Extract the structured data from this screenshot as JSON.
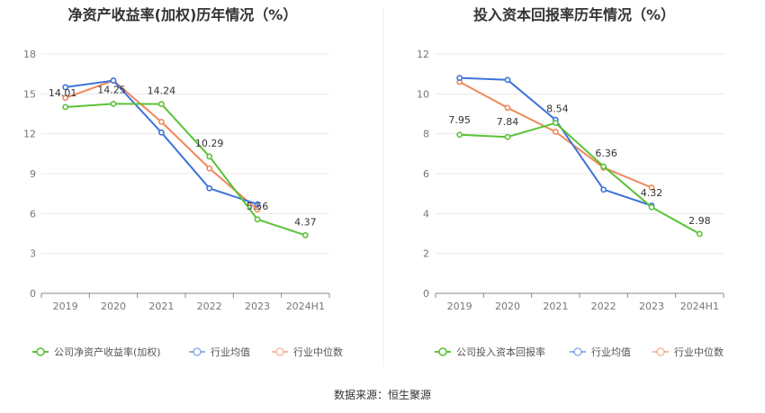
{
  "charts": [
    {
      "title": "净资产收益率(加权)历年情况（%）",
      "ylim": [
        0,
        18
      ],
      "yticks": [
        "0",
        "3",
        "6",
        "9",
        "12",
        "15",
        "18"
      ],
      "categories": [
        "2019",
        "2020",
        "2021",
        "2022",
        "2023",
        "2024H1"
      ],
      "legend": [
        "公司净资产收益率(加权)",
        "行业均值",
        "行业中位数"
      ]
    },
    {
      "title": "投入资本回报率历年情况（%）",
      "ylim": [
        0,
        12
      ],
      "yticks": [
        "0",
        "2",
        "4",
        "6",
        "8",
        "10",
        "12"
      ],
      "categories": [
        "2019",
        "2020",
        "2021",
        "2022",
        "2023",
        "2024H1"
      ],
      "legend": [
        "公司投入资本回报率",
        "行业均值",
        "行业中位数"
      ]
    }
  ],
  "chart_data": [
    {
      "type": "line",
      "title": "净资产收益率(加权)历年情况（%）",
      "categories": [
        "2019",
        "2020",
        "2021",
        "2022",
        "2023",
        "2024H1"
      ],
      "ylim": [
        0,
        18
      ],
      "grid": true,
      "legend_position": "bottom",
      "series": [
        {
          "name": "公司净资产收益率(加权)",
          "color": "#5bc236",
          "values": [
            14.01,
            14.25,
            14.24,
            10.29,
            5.56,
            4.37
          ],
          "labels": [
            "14.01",
            "14.25",
            "14.24",
            "10.29",
            "5.56",
            "4.37"
          ]
        },
        {
          "name": "行业均值",
          "color": "#3d74d9",
          "values": [
            15.5,
            16.0,
            12.1,
            7.9,
            6.7,
            null
          ]
        },
        {
          "name": "行业中位数",
          "color": "#f0875a",
          "values": [
            14.7,
            16.0,
            12.9,
            9.4,
            6.3,
            null
          ]
        }
      ]
    },
    {
      "type": "line",
      "title": "投入资本回报率历年情况（%）",
      "categories": [
        "2019",
        "2020",
        "2021",
        "2022",
        "2023",
        "2024H1"
      ],
      "ylim": [
        0,
        12
      ],
      "grid": true,
      "legend_position": "bottom",
      "series": [
        {
          "name": "公司投入资本回报率",
          "color": "#5bc236",
          "values": [
            7.95,
            7.84,
            8.54,
            6.36,
            4.32,
            2.98
          ],
          "labels": [
            "7.95",
            "7.84",
            "8.54",
            "6.36",
            "4.32",
            "2.98"
          ]
        },
        {
          "name": "行业均值",
          "color": "#3d74d9",
          "values": [
            10.8,
            10.7,
            8.7,
            5.2,
            4.4,
            null
          ]
        },
        {
          "name": "行业中位数",
          "color": "#f0875a",
          "values": [
            10.6,
            9.3,
            8.1,
            6.3,
            5.3,
            null
          ]
        }
      ]
    }
  ],
  "footer": {
    "source": "数据来源：恒生聚源"
  }
}
